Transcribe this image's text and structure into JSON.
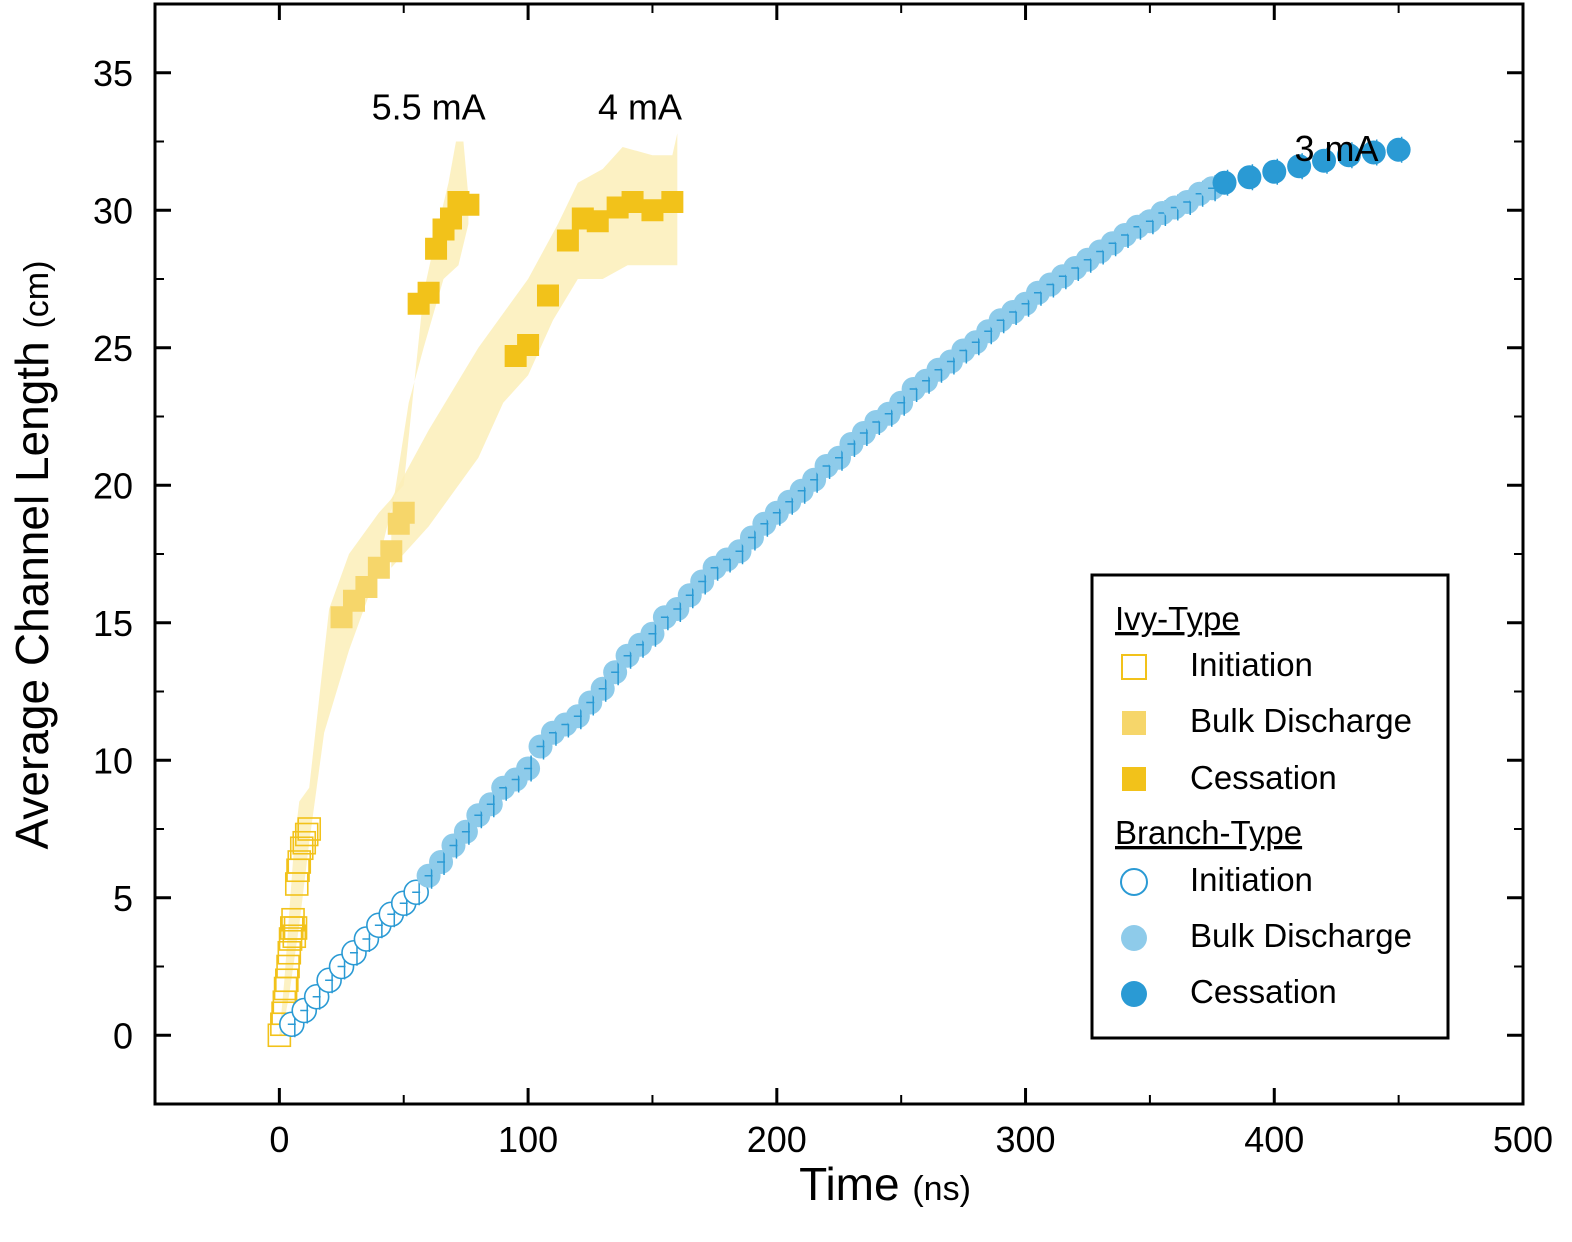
{
  "chart_data": {
    "type": "scatter",
    "xlabel": "Time",
    "xlabel_unit": "(ns)",
    "ylabel": "Average Channel Length",
    "ylabel_unit": "(cm)",
    "xlim": [
      -50,
      500
    ],
    "ylim": [
      -2.5,
      37.5
    ],
    "xticks": [
      0,
      100,
      200,
      300,
      400,
      500
    ],
    "yticks": [
      0,
      5,
      10,
      15,
      20,
      25,
      30,
      35
    ],
    "grid": false,
    "legend_position": "bottom-right",
    "colors": {
      "ivy": "#f2c21a",
      "ivy_bulk": "#f6d66a",
      "ivy_band": "#fbeeb8",
      "branch": "#2a9ad4",
      "branch_bulk": "#8ecbea",
      "branch_err": "#2a9ad4"
    },
    "legend": {
      "groups": [
        {
          "title": "Ivy-Type",
          "entries": [
            {
              "label": "Initiation",
              "marker": "open-square"
            },
            {
              "label": "Bulk Discharge",
              "marker": "light-square"
            },
            {
              "label": "Cessation",
              "marker": "filled-square"
            }
          ]
        },
        {
          "title": "Branch-Type",
          "entries": [
            {
              "label": "Initiation",
              "marker": "open-circle"
            },
            {
              "label": "Bulk Discharge",
              "marker": "light-circle"
            },
            {
              "label": "Cessation",
              "marker": "filled-circle"
            }
          ]
        }
      ]
    },
    "annotations": [
      {
        "text": "5.5 mA",
        "x": 60,
        "y": 33.3
      },
      {
        "text": "4 mA",
        "x": 145,
        "y": 33.3
      },
      {
        "text": "3 mA",
        "x": 425,
        "y": 31.8
      }
    ],
    "series": [
      {
        "name": "5.5 mA",
        "type": "ivy",
        "band_upper": [
          [
            0,
            0
          ],
          [
            2,
            2
          ],
          [
            4,
            4.5
          ],
          [
            6,
            7
          ],
          [
            8,
            8.5
          ],
          [
            12,
            9
          ],
          [
            20,
            15.5
          ],
          [
            28,
            17.5
          ],
          [
            40,
            19
          ],
          [
            50,
            20
          ],
          [
            58,
            27
          ],
          [
            64,
            29.5
          ],
          [
            68,
            31
          ],
          [
            71,
            32.5
          ],
          [
            74,
            32.5
          ],
          [
            76,
            30.5
          ]
        ],
        "band_lower": [
          [
            76,
            29.5
          ],
          [
            72,
            28
          ],
          [
            66,
            27.5
          ],
          [
            58,
            25
          ],
          [
            52,
            23
          ],
          [
            46,
            19.5
          ],
          [
            38,
            16.5
          ],
          [
            28,
            14
          ],
          [
            18,
            11
          ],
          [
            12,
            7
          ],
          [
            8,
            4
          ],
          [
            4,
            1.5
          ],
          [
            1,
            0
          ]
        ],
        "initiation": [
          [
            0,
            0
          ],
          [
            1,
            0.4
          ],
          [
            1.5,
            0.8
          ],
          [
            2,
            1.2
          ],
          [
            2.5,
            1.7
          ],
          [
            3,
            2
          ],
          [
            3.5,
            2.5
          ],
          [
            4,
            3
          ],
          [
            4.5,
            3.5
          ],
          [
            5,
            3.9
          ],
          [
            5.5,
            4.2
          ],
          [
            6,
            3.6
          ],
          [
            6.5,
            3.9
          ],
          [
            7,
            5.5
          ],
          [
            7.5,
            6
          ],
          [
            8,
            6.3
          ],
          [
            9,
            6.8
          ],
          [
            10,
            7
          ],
          [
            11,
            7.3
          ],
          [
            12,
            7.5
          ]
        ],
        "bulk": [
          [
            25,
            15.2
          ],
          [
            30,
            15.8
          ],
          [
            35,
            16.3
          ],
          [
            40,
            17
          ],
          [
            45,
            17.6
          ],
          [
            48,
            18.6
          ],
          [
            50,
            19
          ]
        ],
        "cessation": [
          [
            56,
            26.6
          ],
          [
            60,
            27
          ],
          [
            63,
            28.6
          ],
          [
            66,
            29.3
          ],
          [
            69,
            29.7
          ],
          [
            72,
            30.3
          ],
          [
            76,
            30.2
          ]
        ]
      },
      {
        "name": "4 mA",
        "type": "ivy",
        "band_upper": [
          [
            45,
            19.5
          ],
          [
            60,
            22
          ],
          [
            80,
            25
          ],
          [
            100,
            27.5
          ],
          [
            112,
            29.5
          ],
          [
            120,
            31
          ],
          [
            130,
            31.5
          ],
          [
            138,
            32.3
          ],
          [
            150,
            32
          ],
          [
            158,
            32
          ],
          [
            160,
            32.8
          ],
          [
            160,
            31
          ]
        ],
        "band_lower": [
          [
            160,
            28
          ],
          [
            152,
            28
          ],
          [
            140,
            28
          ],
          [
            130,
            27.5
          ],
          [
            120,
            27.5
          ],
          [
            110,
            26
          ],
          [
            100,
            24
          ],
          [
            90,
            23
          ],
          [
            80,
            21
          ],
          [
            60,
            18.5
          ],
          [
            45,
            17
          ]
        ],
        "initiation": [],
        "bulk": [],
        "cessation": [
          [
            95,
            24.7
          ],
          [
            100,
            25.1
          ],
          [
            108,
            26.9
          ],
          [
            116,
            28.9
          ],
          [
            122,
            29.7
          ],
          [
            128,
            29.6
          ],
          [
            136,
            30.1
          ],
          [
            142,
            30.3
          ],
          [
            150,
            30
          ],
          [
            158,
            30.3
          ]
        ]
      },
      {
        "name": "3 mA",
        "type": "branch",
        "initiation": [
          [
            5,
            0.4
          ],
          [
            10,
            0.9
          ],
          [
            15,
            1.4
          ],
          [
            20,
            2
          ],
          [
            25,
            2.5
          ],
          [
            30,
            3
          ],
          [
            35,
            3.5
          ],
          [
            40,
            4
          ],
          [
            45,
            4.4
          ],
          [
            50,
            4.8
          ],
          [
            55,
            5.2
          ]
        ],
        "bulk": [
          [
            60,
            5.8
          ],
          [
            65,
            6.3
          ],
          [
            70,
            6.9
          ],
          [
            75,
            7.4
          ],
          [
            80,
            8
          ],
          [
            85,
            8.4
          ],
          [
            90,
            9
          ],
          [
            95,
            9.3
          ],
          [
            100,
            9.7
          ],
          [
            105,
            10.5
          ],
          [
            110,
            11
          ],
          [
            115,
            11.3
          ],
          [
            120,
            11.6
          ],
          [
            125,
            12.1
          ],
          [
            130,
            12.6
          ],
          [
            135,
            13.2
          ],
          [
            140,
            13.8
          ],
          [
            145,
            14.2
          ],
          [
            150,
            14.6
          ],
          [
            155,
            15.2
          ],
          [
            160,
            15.5
          ],
          [
            165,
            16
          ],
          [
            170,
            16.5
          ],
          [
            175,
            17
          ],
          [
            180,
            17.3
          ],
          [
            185,
            17.6
          ],
          [
            190,
            18.1
          ],
          [
            195,
            18.6
          ],
          [
            200,
            19
          ],
          [
            205,
            19.4
          ],
          [
            210,
            19.8
          ],
          [
            215,
            20.2
          ],
          [
            220,
            20.7
          ],
          [
            225,
            21
          ],
          [
            230,
            21.5
          ],
          [
            235,
            21.9
          ],
          [
            240,
            22.3
          ],
          [
            245,
            22.6
          ],
          [
            250,
            23
          ],
          [
            255,
            23.5
          ],
          [
            260,
            23.8
          ],
          [
            265,
            24.2
          ],
          [
            270,
            24.5
          ],
          [
            275,
            24.9
          ],
          [
            280,
            25.2
          ],
          [
            285,
            25.6
          ],
          [
            290,
            26
          ],
          [
            295,
            26.3
          ],
          [
            300,
            26.6
          ],
          [
            305,
            27
          ],
          [
            310,
            27.3
          ],
          [
            315,
            27.6
          ],
          [
            320,
            27.9
          ],
          [
            325,
            28.2
          ],
          [
            330,
            28.5
          ],
          [
            335,
            28.8
          ],
          [
            340,
            29.1
          ],
          [
            345,
            29.4
          ],
          [
            350,
            29.6
          ],
          [
            355,
            29.9
          ],
          [
            360,
            30.1
          ],
          [
            365,
            30.3
          ],
          [
            370,
            30.6
          ],
          [
            375,
            30.8
          ]
        ],
        "cessation": [
          [
            380,
            31
          ],
          [
            390,
            31.2
          ],
          [
            400,
            31.4
          ],
          [
            410,
            31.6
          ],
          [
            420,
            31.8
          ],
          [
            430,
            32
          ],
          [
            440,
            32.1
          ],
          [
            450,
            32.2
          ]
        ]
      }
    ]
  }
}
